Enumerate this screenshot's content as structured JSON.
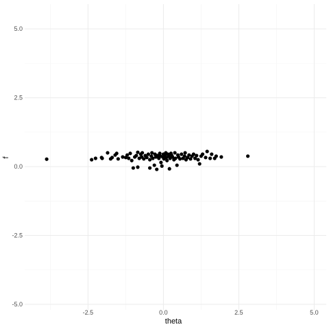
{
  "chart_data": {
    "type": "scatter",
    "title": "",
    "xlabel": "theta",
    "ylabel": "f",
    "xlim": [
      -4.6,
      5.4
    ],
    "ylim": [
      -5.2,
      5.9
    ],
    "x_ticks": [
      -2.5,
      0.0,
      2.5,
      5.0
    ],
    "x_tick_labels": [
      "-2.5",
      "0.0",
      "2.5",
      "5.0"
    ],
    "y_ticks": [
      -5.0,
      -2.5,
      0.0,
      2.5,
      5.0
    ],
    "y_tick_labels": [
      "-5.0",
      "-2.5",
      "0.0",
      "2.5",
      "5.0"
    ],
    "x_minor_ticks": [
      -3.75,
      -1.25,
      1.25,
      3.75
    ],
    "y_minor_ticks": [
      -3.75,
      -1.25,
      1.25,
      3.75
    ],
    "grid": true,
    "legend": "none",
    "point_color": "#000000",
    "points": [
      [
        -3.87,
        0.27
      ],
      [
        -2.38,
        0.25
      ],
      [
        -2.25,
        0.3
      ],
      [
        -2.05,
        0.33
      ],
      [
        -2.03,
        0.3
      ],
      [
        -1.85,
        0.5
      ],
      [
        -1.75,
        0.28
      ],
      [
        -1.7,
        0.33
      ],
      [
        -1.6,
        0.42
      ],
      [
        -1.55,
        0.48
      ],
      [
        -1.5,
        0.28
      ],
      [
        -1.35,
        0.35
      ],
      [
        -1.25,
        0.33
      ],
      [
        -1.2,
        0.42
      ],
      [
        -1.15,
        0.3
      ],
      [
        -1.1,
        0.48
      ],
      [
        -1.05,
        0.22
      ],
      [
        -1.0,
        -0.05
      ],
      [
        -0.95,
        0.35
      ],
      [
        -0.9,
        0.4
      ],
      [
        -0.85,
        0.52
      ],
      [
        -0.85,
        -0.02
      ],
      [
        -0.8,
        0.3
      ],
      [
        -0.75,
        0.45
      ],
      [
        -0.72,
        0.35
      ],
      [
        -0.7,
        0.5
      ],
      [
        -0.65,
        0.28
      ],
      [
        -0.6,
        0.4
      ],
      [
        -0.55,
        0.33
      ],
      [
        -0.5,
        0.45
      ],
      [
        -0.45,
        -0.05
      ],
      [
        -0.45,
        0.25
      ],
      [
        -0.4,
        0.38
      ],
      [
        -0.38,
        0.5
      ],
      [
        -0.35,
        0.3
      ],
      [
        -0.3,
        0.05
      ],
      [
        -0.28,
        0.45
      ],
      [
        -0.25,
        0.35
      ],
      [
        -0.22,
        -0.1
      ],
      [
        -0.2,
        0.4
      ],
      [
        -0.15,
        0.3
      ],
      [
        -0.12,
        0.48
      ],
      [
        -0.1,
        0.38
      ],
      [
        -0.08,
        0.15
      ],
      [
        -0.05,
        0.02
      ],
      [
        -0.02,
        0.35
      ],
      [
        0.0,
        0.45
      ],
      [
        0.02,
        0.28
      ],
      [
        0.05,
        0.4
      ],
      [
        0.08,
        0.5
      ],
      [
        0.1,
        0.33
      ],
      [
        0.12,
        0.22
      ],
      [
        0.15,
        0.45
      ],
      [
        0.18,
        0.38
      ],
      [
        0.2,
        -0.08
      ],
      [
        0.22,
        0.3
      ],
      [
        0.25,
        0.48
      ],
      [
        0.28,
        0.4
      ],
      [
        0.3,
        0.35
      ],
      [
        0.35,
        0.25
      ],
      [
        0.38,
        0.5
      ],
      [
        0.4,
        0.3
      ],
      [
        0.45,
        0.05
      ],
      [
        0.48,
        0.42
      ],
      [
        0.5,
        0.35
      ],
      [
        0.55,
        0.28
      ],
      [
        0.6,
        0.45
      ],
      [
        0.65,
        0.3
      ],
      [
        0.7,
        0.38
      ],
      [
        0.72,
        0.5
      ],
      [
        0.75,
        0.25
      ],
      [
        0.8,
        0.33
      ],
      [
        0.85,
        0.42
      ],
      [
        0.9,
        0.28
      ],
      [
        0.95,
        0.38
      ],
      [
        1.0,
        0.45
      ],
      [
        1.05,
        0.3
      ],
      [
        1.1,
        0.4
      ],
      [
        1.15,
        0.25
      ],
      [
        1.2,
        0.1
      ],
      [
        1.25,
        0.38
      ],
      [
        1.3,
        0.45
      ],
      [
        1.4,
        0.33
      ],
      [
        1.45,
        0.55
      ],
      [
        1.55,
        0.3
      ],
      [
        1.6,
        0.45
      ],
      [
        1.7,
        0.3
      ],
      [
        1.75,
        0.38
      ],
      [
        1.92,
        0.35
      ],
      [
        2.8,
        0.38
      ]
    ]
  }
}
